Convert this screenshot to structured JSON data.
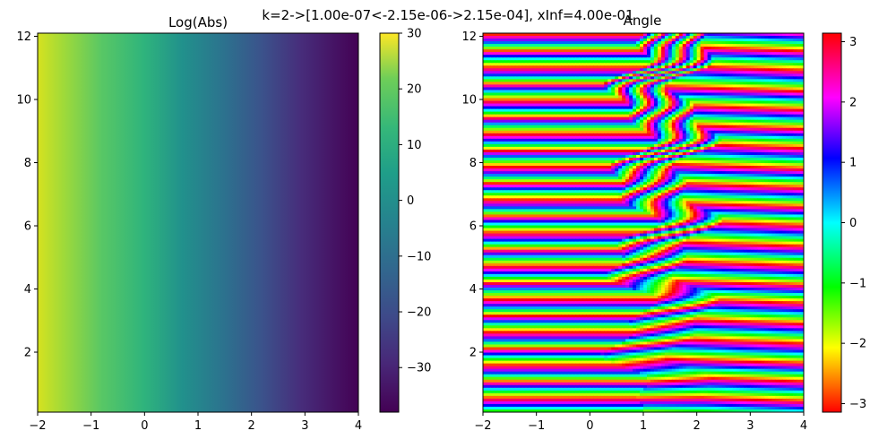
{
  "figure": {
    "suptitle": "k=2->[1.00e-07<-2.15e-06->2.15e-04], xInf=4.00e-01"
  },
  "chart_data": [
    {
      "type": "heatmap",
      "title": "Log(Abs)",
      "xlim": [
        -2,
        4
      ],
      "ylim": [
        0.1,
        12.1
      ],
      "xticks": [
        -2,
        -1,
        0,
        1,
        2,
        3,
        4
      ],
      "yticks": [
        2,
        4,
        6,
        8,
        10,
        12
      ],
      "colormap": "viridis",
      "colorbar": {
        "range": [
          -38,
          30
        ],
        "ticks": [
          30,
          20,
          10,
          0,
          -10,
          -20,
          -30
        ],
        "tick_labels": [
          "30",
          "20",
          "10",
          "0",
          "−10",
          "−20",
          "−30"
        ]
      },
      "field": "log-magnitude, decreasing roughly linearly from about 28 at x=-2 to about -38 at x=4"
    },
    {
      "type": "heatmap",
      "title": "Angle",
      "xlim": [
        -2,
        4
      ],
      "ylim": [
        0.1,
        12.1
      ],
      "xticks": [
        -2,
        -1,
        0,
        1,
        2,
        3,
        4
      ],
      "yticks": [
        2,
        4,
        6,
        8,
        10,
        12
      ],
      "colormap": "hsv",
      "colorbar": {
        "range": [
          -3.14159,
          3.14159
        ],
        "ticks": [
          3,
          2,
          1,
          0,
          -1,
          -2,
          -3
        ],
        "tick_labels": [
          "3",
          "2",
          "1",
          "0",
          "−1",
          "−2",
          "−3"
        ]
      },
      "field": "phase angle, horizontal bands varying with y, bands converge near x≈0.5–1.5"
    }
  ]
}
